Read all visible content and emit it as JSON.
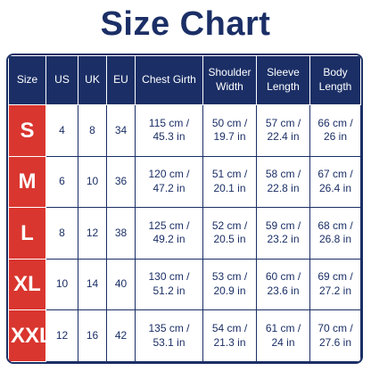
{
  "header": {
    "title": "Size Chart"
  },
  "table": {
    "columns": [
      "Size",
      "US",
      "UK",
      "EU",
      "Chest Girth",
      "Shoulder Width",
      "Sleeve Length",
      "Body Length"
    ],
    "rows": [
      [
        "S",
        "4",
        "8",
        "34",
        "115 cm / 45.3 in",
        "50 cm / 19.7 in",
        "57 cm / 22.4 in",
        "66 cm / 26 in"
      ],
      [
        "M",
        "6",
        "10",
        "36",
        "120 cm / 47.2 in",
        "51 cm / 20.1 in",
        "58 cm / 22.8 in",
        "67 cm / 26.4 in"
      ],
      [
        "L",
        "8",
        "12",
        "38",
        "125 cm / 49.2 in",
        "52 cm / 20.5 in",
        "59 cm / 23.2 in",
        "68 cm / 26.8 in"
      ],
      [
        "XL",
        "10",
        "14",
        "40",
        "130 cm / 51.2 in",
        "53 cm / 20.9 in",
        "60 cm / 23.6 in",
        "69 cm / 27.2 in"
      ],
      [
        "XXL",
        "12",
        "16",
        "42",
        "135 cm / 53.1 in",
        "54 cm / 21.3 in",
        "61 cm / 24 in",
        "70 cm / 27.6 in"
      ]
    ]
  }
}
